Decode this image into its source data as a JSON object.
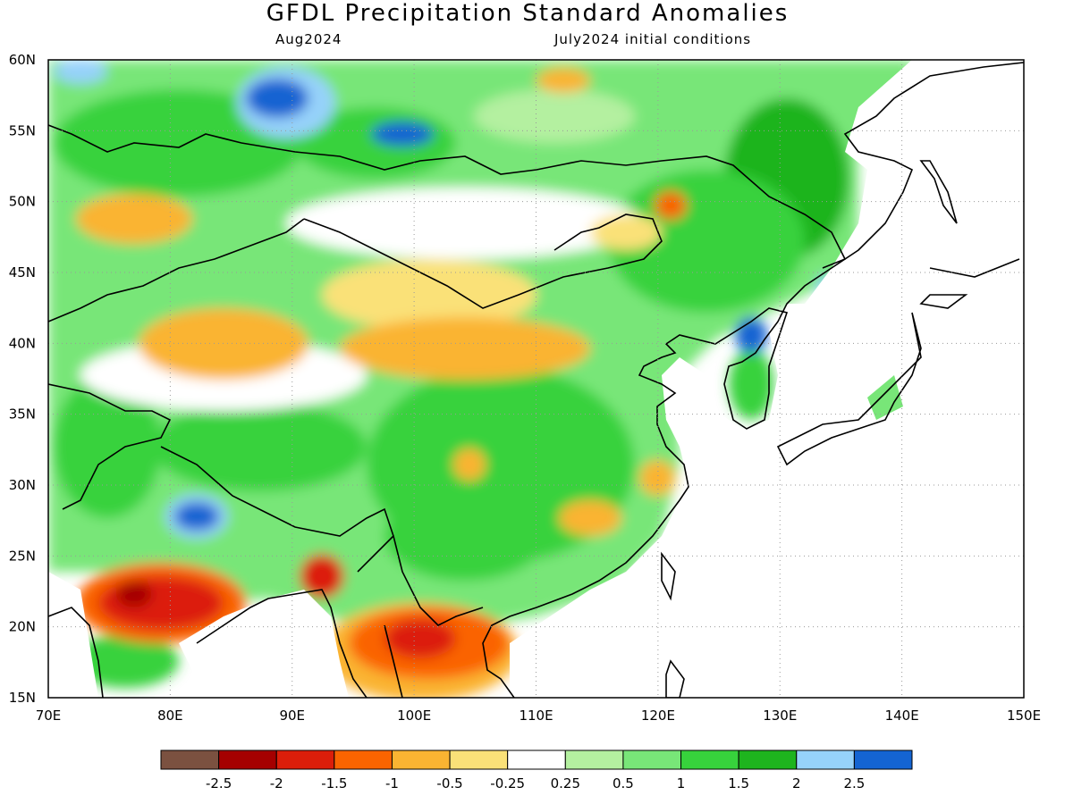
{
  "header": {
    "title": "GFDL Precipitation Standard Anomalies",
    "period": "Aug2024",
    "init": "July2024 initial conditions"
  },
  "axes": {
    "lon_labels": [
      "70E",
      "80E",
      "90E",
      "100E",
      "110E",
      "120E",
      "130E",
      "140E",
      "150E"
    ],
    "lat_labels": [
      "15N",
      "20N",
      "25N",
      "30N",
      "35N",
      "40N",
      "45N",
      "50N",
      "55N",
      "60N"
    ],
    "lon_range": [
      70,
      150
    ],
    "lat_range": [
      15,
      60
    ],
    "grid": "dotted"
  },
  "legend": {
    "colors": [
      "#7b5140",
      "#a50000",
      "#dc1e0a",
      "#fa6400",
      "#fab432",
      "#fae178",
      "#ffffff",
      "#b4f0a0",
      "#78e678",
      "#37d23c",
      "#1eb41e",
      "#96d2fa",
      "#1464d2"
    ],
    "tick_labels": [
      "-2.5",
      "-2",
      "-1.5",
      "-1",
      "-0.5",
      "-0.25",
      "0.25",
      "0.5",
      "1",
      "1.5",
      "2",
      "2.5"
    ]
  },
  "regions": [
    {
      "name": "wet-south-china",
      "color": "#37d23c",
      "lon": [
        100,
        118
      ],
      "lat": [
        22,
        40
      ]
    },
    {
      "name": "wet-northeast",
      "color": "#37d23c",
      "lon": [
        116,
        136
      ],
      "lat": [
        42,
        57
      ]
    },
    {
      "name": "dry-mongolia",
      "color": "#fae178",
      "lon": [
        88,
        112
      ],
      "lat": [
        36,
        48
      ]
    },
    {
      "name": "dry-india",
      "color": "#dc1e0a",
      "lon": [
        74,
        84
      ],
      "lat": [
        19,
        24
      ]
    },
    {
      "name": "dry-indochina",
      "color": "#fa6400",
      "lon": [
        94,
        108
      ],
      "lat": [
        15,
        22
      ]
    },
    {
      "name": "very-wet-tibet",
      "color": "#1464d2",
      "lon": [
        80,
        85
      ],
      "lat": [
        27,
        29
      ]
    },
    {
      "name": "very-wet-siberia",
      "color": "#1464d2",
      "lon": [
        85,
        92
      ],
      "lat": [
        55,
        59
      ]
    }
  ]
}
